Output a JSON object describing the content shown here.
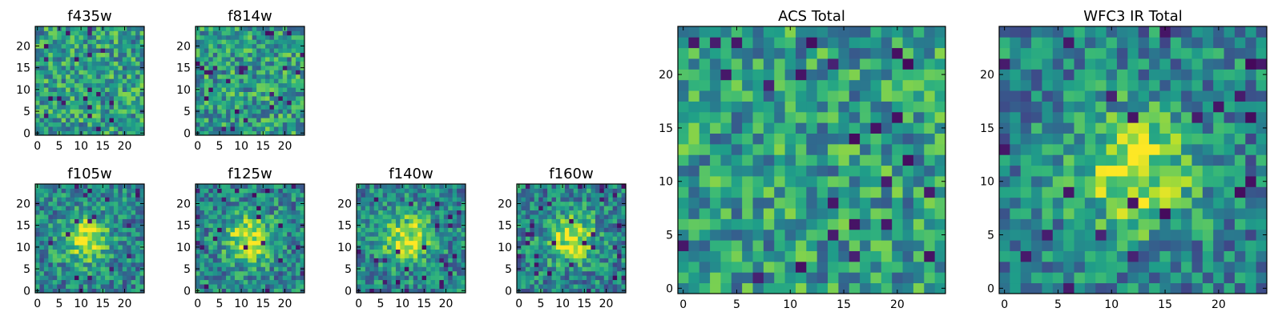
{
  "chart_data": [
    {
      "type": "heatmap",
      "title": "f435w",
      "grid_size": 25,
      "colormap": "viridis",
      "xlim": [
        0,
        24
      ],
      "ylim": [
        0,
        24
      ],
      "x_ticks": [
        0,
        5,
        10,
        15,
        20
      ],
      "y_ticks": [
        0,
        5,
        10,
        15,
        20
      ],
      "grid": false,
      "legend": "none",
      "pattern": "noise",
      "seed": 11
    },
    {
      "type": "heatmap",
      "title": "f814w",
      "grid_size": 25,
      "colormap": "viridis",
      "xlim": [
        0,
        24
      ],
      "ylim": [
        0,
        24
      ],
      "x_ticks": [
        0,
        5,
        10,
        15,
        20
      ],
      "y_ticks": [
        0,
        5,
        10,
        15,
        20
      ],
      "grid": false,
      "legend": "none",
      "pattern": "noise",
      "seed": 23
    },
    {
      "type": "heatmap",
      "title": "f105w",
      "grid_size": 25,
      "colormap": "viridis",
      "xlim": [
        0,
        24
      ],
      "ylim": [
        0,
        24
      ],
      "x_ticks": [
        0,
        5,
        10,
        15,
        20
      ],
      "y_ticks": [
        0,
        5,
        10,
        15,
        20
      ],
      "grid": false,
      "legend": "none",
      "pattern": "central-source",
      "source_center": [
        11,
        12
      ],
      "seed": 37
    },
    {
      "type": "heatmap",
      "title": "f125w",
      "grid_size": 25,
      "colormap": "viridis",
      "xlim": [
        0,
        24
      ],
      "ylim": [
        0,
        24
      ],
      "x_ticks": [
        0,
        5,
        10,
        15,
        20
      ],
      "y_ticks": [
        0,
        5,
        10,
        15,
        20
      ],
      "grid": false,
      "legend": "none",
      "pattern": "central-source",
      "source_center": [
        12,
        12
      ],
      "seed": 41
    },
    {
      "type": "heatmap",
      "title": "f140w",
      "grid_size": 25,
      "colormap": "viridis",
      "xlim": [
        0,
        24
      ],
      "ylim": [
        0,
        24
      ],
      "x_ticks": [
        0,
        5,
        10,
        15,
        20
      ],
      "y_ticks": [
        0,
        5,
        10,
        15,
        20
      ],
      "grid": false,
      "legend": "none",
      "pattern": "central-source",
      "source_center": [
        11,
        12
      ],
      "seed": 53
    },
    {
      "type": "heatmap",
      "title": "f160w",
      "grid_size": 25,
      "colormap": "viridis",
      "xlim": [
        0,
        24
      ],
      "ylim": [
        0,
        24
      ],
      "x_ticks": [
        0,
        5,
        10,
        15,
        20
      ],
      "y_ticks": [
        0,
        5,
        10,
        15,
        20
      ],
      "grid": false,
      "legend": "none",
      "pattern": "central-source",
      "source_center": [
        12,
        12
      ],
      "seed": 67
    },
    {
      "type": "heatmap",
      "title": "ACS Total",
      "grid_size": 25,
      "colormap": "viridis",
      "xlim": [
        0,
        24
      ],
      "ylim": [
        0,
        24
      ],
      "x_ticks": [
        0,
        5,
        10,
        15,
        20
      ],
      "y_ticks": [
        0,
        5,
        10,
        15,
        20
      ],
      "grid": false,
      "legend": "none",
      "pattern": "noise",
      "seed": 71
    },
    {
      "type": "heatmap",
      "title": "WFC3 IR Total",
      "grid_size": 25,
      "colormap": "viridis",
      "xlim": [
        0,
        24
      ],
      "ylim": [
        0,
        24
      ],
      "x_ticks": [
        0,
        5,
        10,
        15,
        20
      ],
      "y_ticks": [
        0,
        5,
        10,
        15,
        20
      ],
      "grid": false,
      "legend": "none",
      "pattern": "central-source",
      "source_center": [
        12,
        11
      ],
      "seed": 89
    }
  ]
}
